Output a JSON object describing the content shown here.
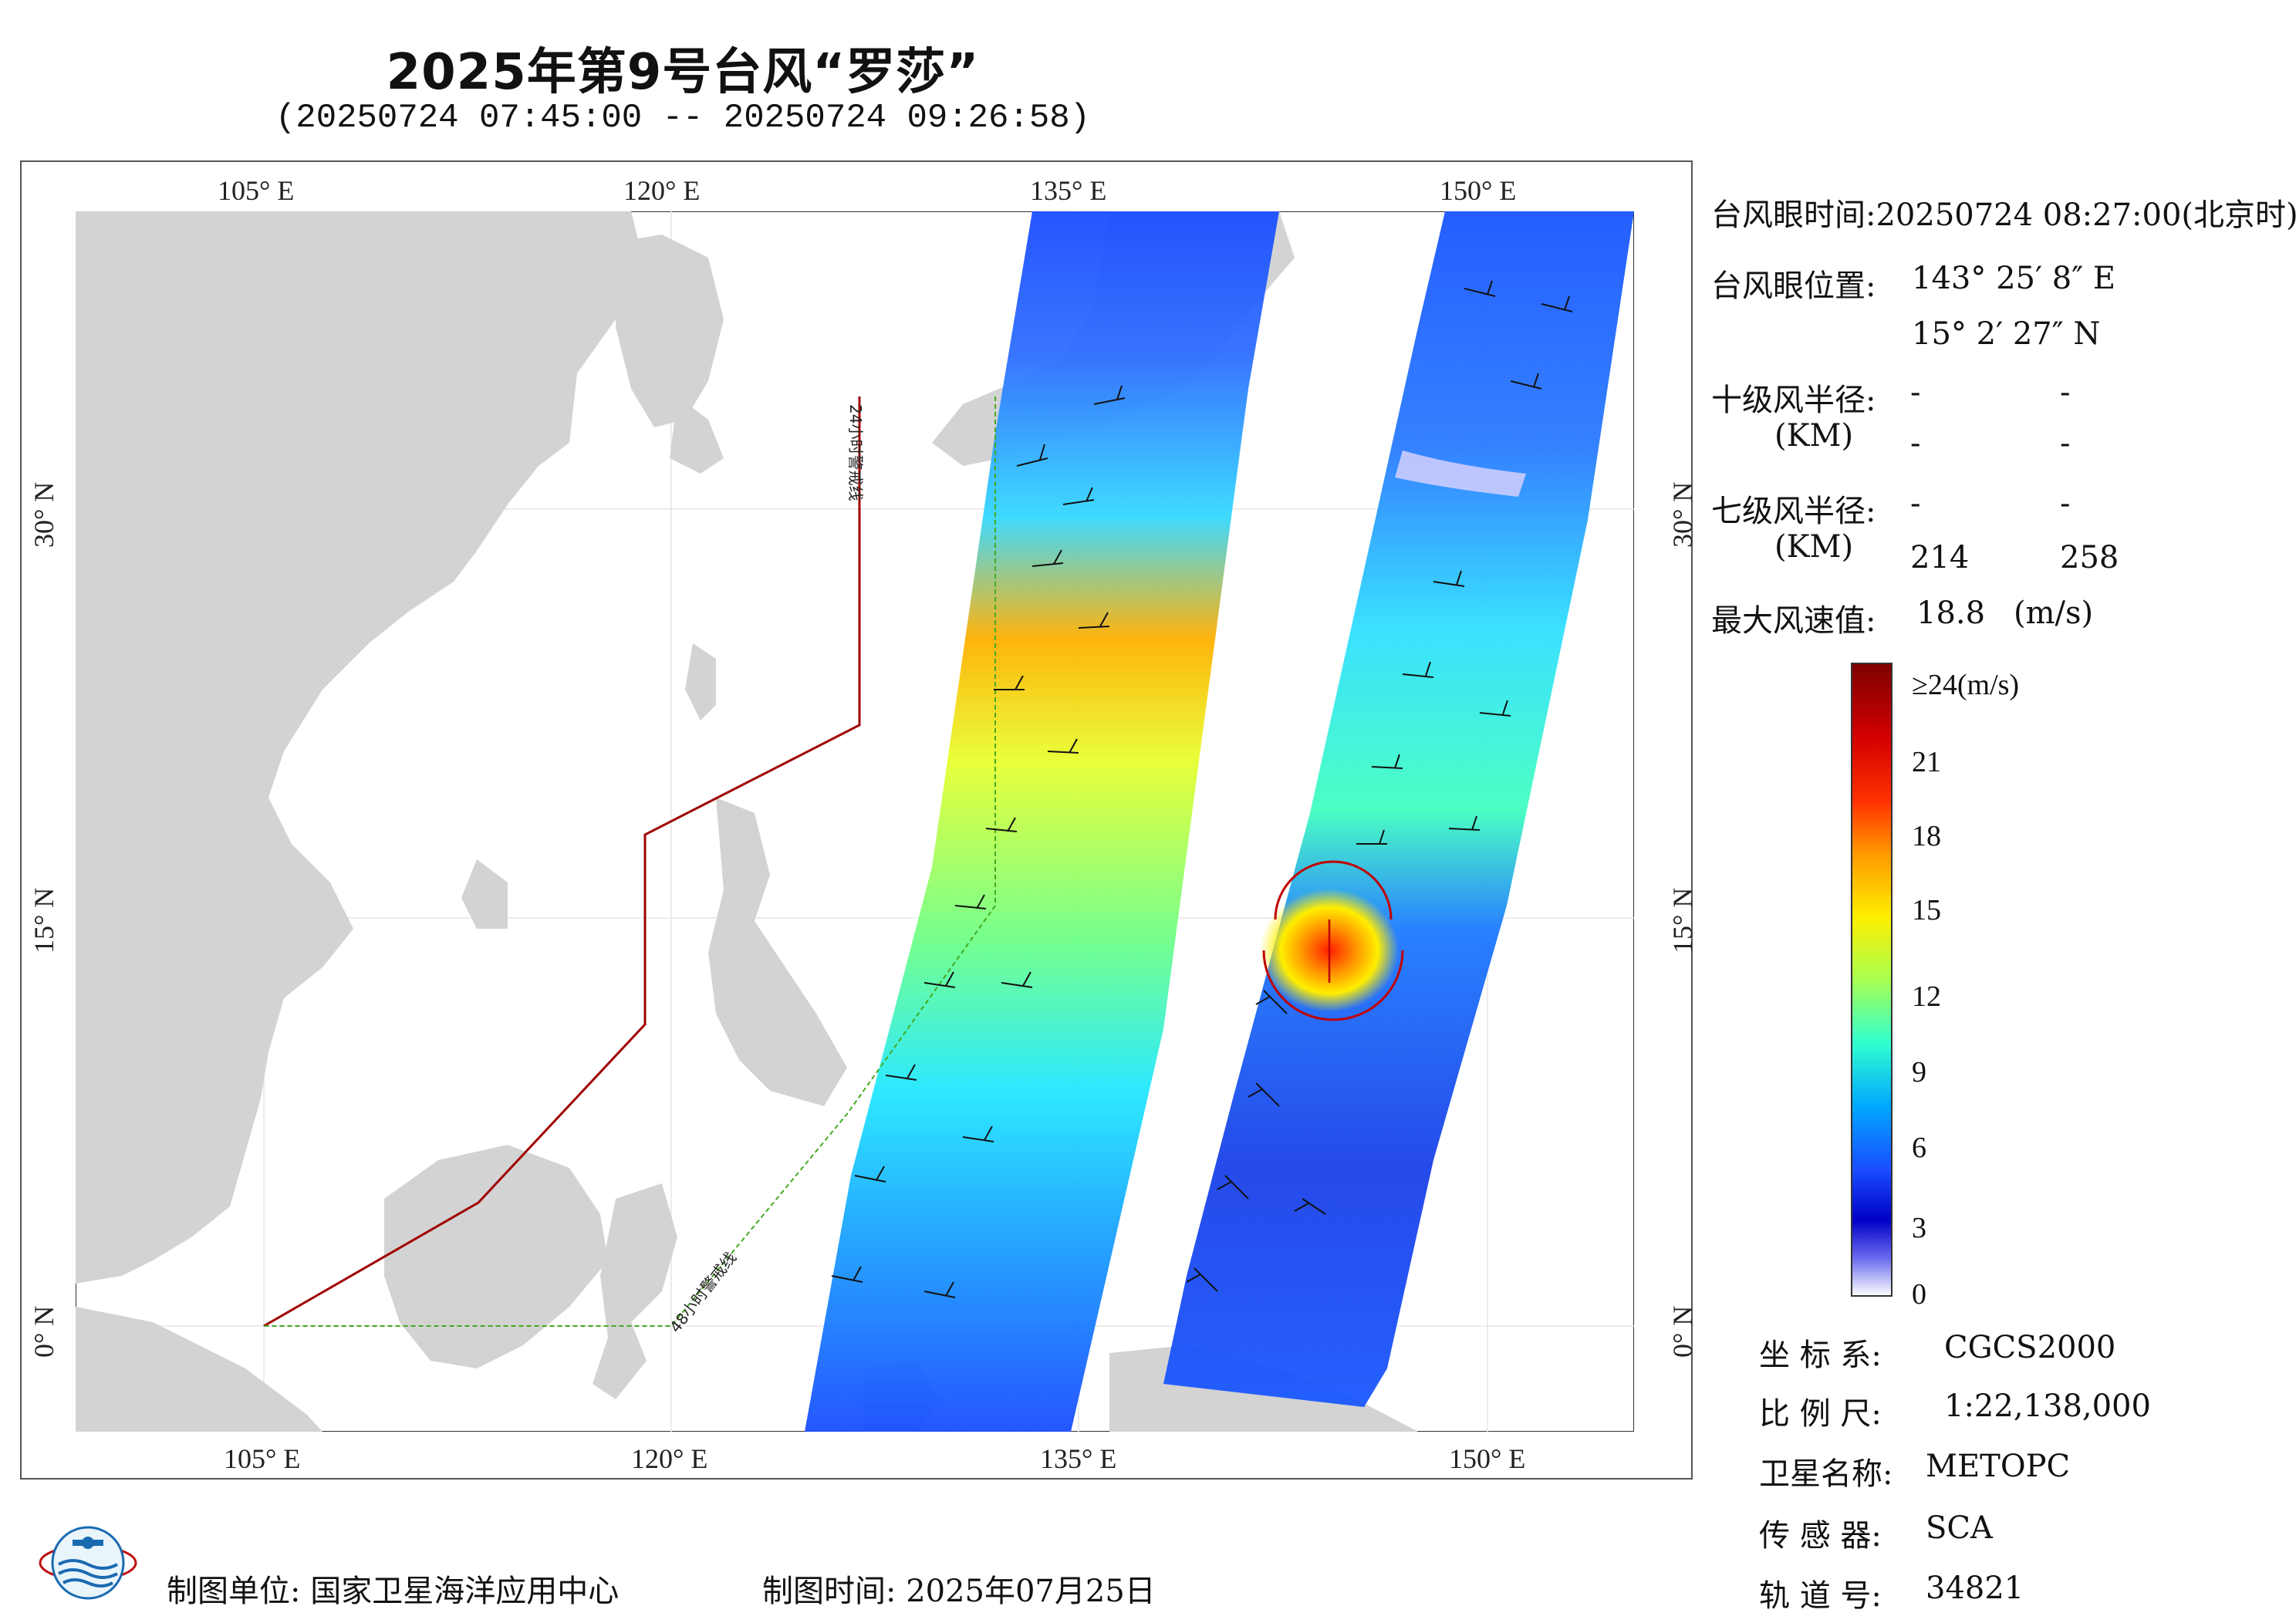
{
  "title": "2025年第9号台风“罗莎”",
  "subtitle": "(20250724 07:45:00 -- 20250724 09:26:58)",
  "axes": {
    "lon_top": [
      "105° E",
      "120° E",
      "135° E",
      "150° E"
    ],
    "lon_bottom": [
      "105° E",
      "120° E",
      "135° E",
      "150° E"
    ],
    "lat_left": [
      "30° N",
      "15° N",
      "0° N"
    ],
    "lat_right": [
      "30° N",
      "15° N",
      "0° N"
    ]
  },
  "map_labels": {
    "line_24h": "24小时警戒线",
    "line_48h": "48小时警戒线"
  },
  "info": {
    "eye_time": "台风眼时间:20250724 08:27:00(北京时)",
    "eye_pos_label": "台风眼位置:",
    "eye_lon": "143° 25′ 8″ E",
    "eye_lat": "15° 2′ 27″ N",
    "r10_label": "十级风半径:",
    "r10_unit": "(KM)",
    "r10_values": [
      "-",
      "-",
      "-",
      "-"
    ],
    "r7_label": "七级风半径:",
    "r7_unit": "(KM)",
    "r7_values": [
      "-",
      "-",
      "214",
      "258"
    ],
    "max_wind_label": "最大风速值:",
    "max_wind_value": "18.8",
    "max_wind_unit": "(m/s)"
  },
  "colorbar": {
    "labels": [
      "≥24(m/s)",
      "21",
      "18",
      "15",
      "12",
      "9",
      "6",
      "3",
      "0"
    ],
    "values": [
      24,
      21,
      18,
      15,
      12,
      9,
      6,
      3,
      0
    ],
    "colors": [
      "#7f0000",
      "#d50000",
      "#ff3300",
      "#ff9900",
      "#ffee00",
      "#a8ff50",
      "#30ffd0",
      "#00a8ff",
      "#1a4dff",
      "#0000c8",
      "#6a6aee",
      "#ffffff"
    ]
  },
  "meta": {
    "crs_label": "坐 标 系:",
    "crs_value": "CGCS2000",
    "scale_label": "比 例 尺:",
    "scale_value": "1:22,138,000",
    "sat_label": "卫星名称:",
    "sat_value": "METOPC",
    "sensor_label": "传 感 器:",
    "sensor_value": "SCA",
    "orbit_label": "轨 道 号:",
    "orbit_value": "34821"
  },
  "footer": {
    "unit": "制图单位: 国家卫星海洋应用中心",
    "time": "制图时间: 2025年07月25日"
  },
  "colors": {
    "land": "#d3d3d3",
    "sea": "#ffffff",
    "line_24h": "#a00000",
    "line_48h": "#44aa22",
    "eye_marker": "#c00000"
  }
}
